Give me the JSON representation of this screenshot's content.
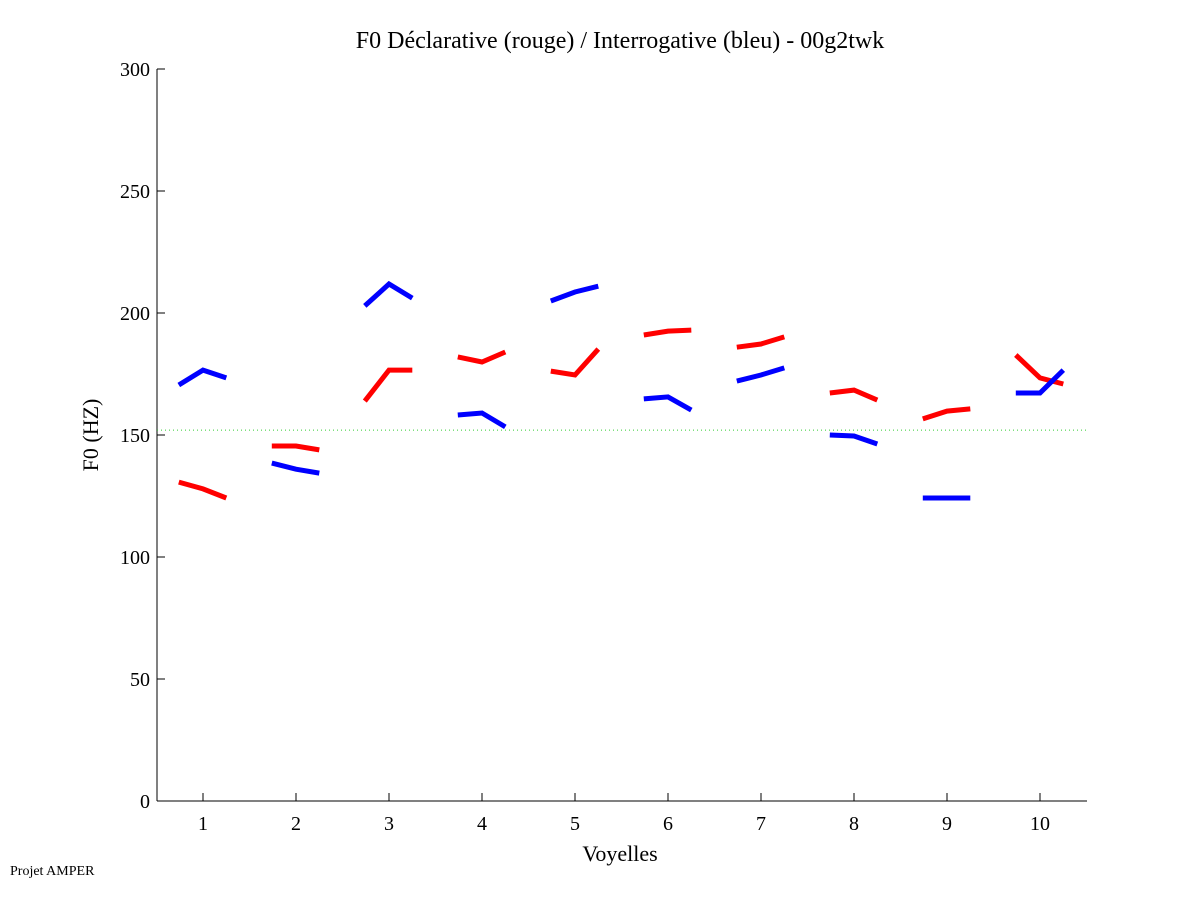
{
  "chart_data": {
    "type": "line",
    "title": "F0 Déclarative (rouge) / Interrogative (bleu) - 00g2twk",
    "xlabel": "Voyelles",
    "ylabel": "F0 (HZ)",
    "xlim": [
      0.5,
      10.5
    ],
    "ylim": [
      0,
      300
    ],
    "xticks": [
      "1",
      "2",
      "3",
      "4",
      "5",
      "6",
      "7",
      "8",
      "9",
      "10"
    ],
    "yticks": [
      "0",
      "50",
      "100",
      "150",
      "200",
      "250",
      "300"
    ],
    "grid": false,
    "reference_line": {
      "value": 152,
      "color": "#33cc33",
      "style": "dotted"
    },
    "series": [
      {
        "name": "Déclarative",
        "color": "#ff0000",
        "segments": [
          [
            130.7,
            127.9,
            124.2
          ],
          [
            145.5,
            145.5,
            143.9
          ],
          [
            163.9,
            176.6,
            176.6
          ],
          [
            182,
            179.9,
            184
          ],
          [
            176.2,
            174.6,
            185.2
          ],
          [
            191,
            192.6,
            193
          ],
          [
            186,
            187.3,
            190.2
          ],
          [
            167.2,
            168.4,
            164.3
          ],
          [
            156.6,
            159.8,
            160.7
          ],
          [
            182.8,
            173.4,
            170.9
          ]
        ]
      },
      {
        "name": "Interrogative",
        "color": "#0000ff",
        "segments": [
          [
            170.5,
            176.6,
            173.4
          ],
          [
            138.5,
            136,
            134.4
          ],
          [
            202.9,
            211.9,
            206.1
          ],
          [
            158.2,
            159,
            153.3
          ],
          [
            204.9,
            208.6,
            211
          ],
          [
            164.8,
            165.6,
            160.2
          ],
          [
            172.1,
            174.6,
            177.5
          ],
          [
            150,
            149.6,
            146.3
          ],
          [
            124.2,
            124.2,
            124.2
          ],
          [
            167.2,
            167.2,
            176.6
          ]
        ]
      }
    ],
    "segment_offsets": [
      -0.26,
      0,
      0.25
    ]
  },
  "footer": "Projet AMPER"
}
